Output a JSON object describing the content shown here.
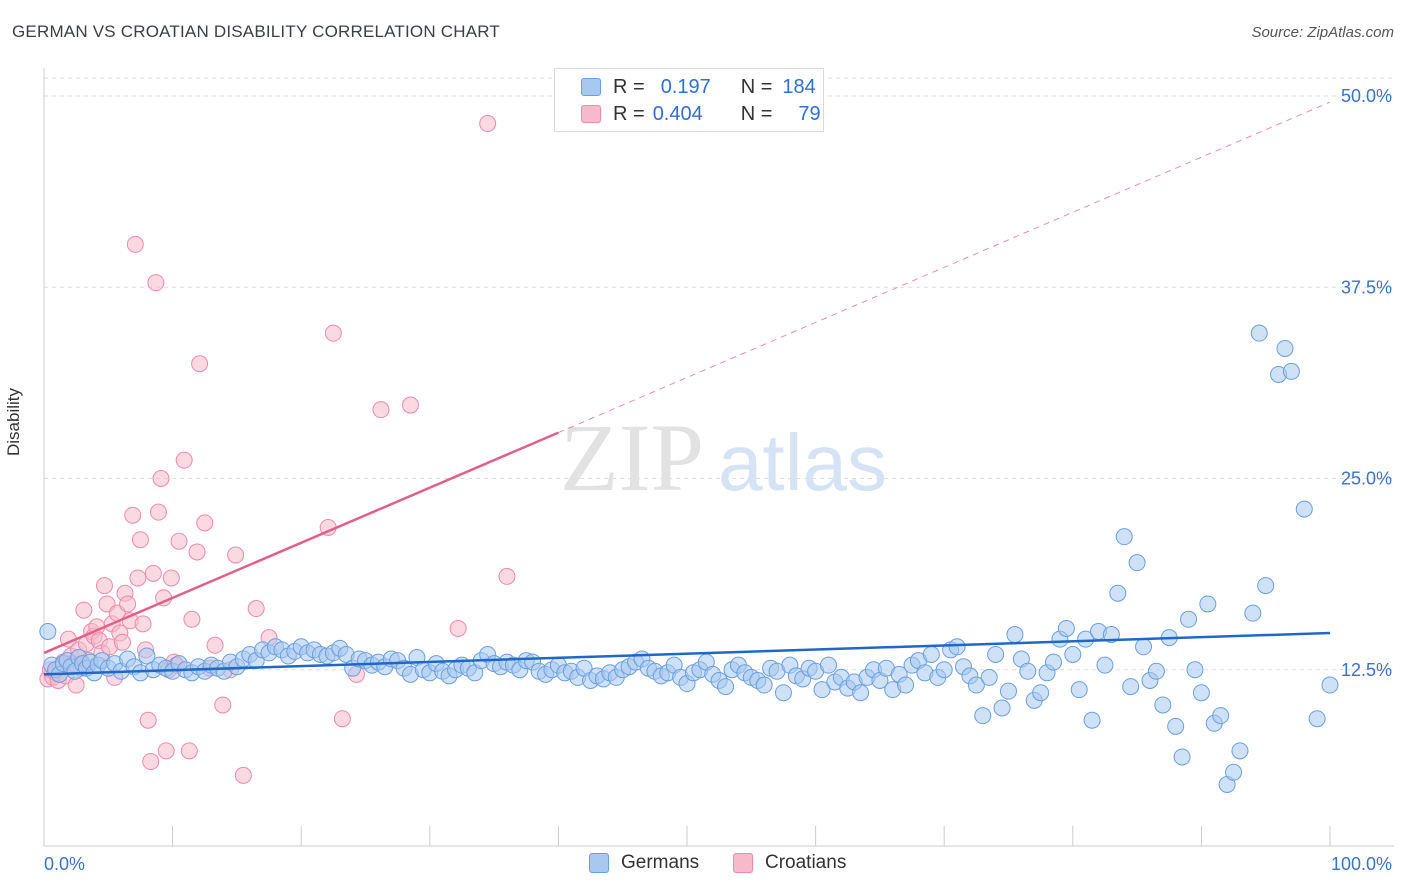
{
  "title": "GERMAN VS CROATIAN DISABILITY CORRELATION CHART",
  "source": "Source: ZipAtlas.com",
  "watermark": {
    "part1": "ZIP",
    "part2": "atlas"
  },
  "legend": {
    "rows": [
      {
        "r_label": "R =",
        "r_value": "0.197",
        "n_label": "N =",
        "n_value": "184"
      },
      {
        "r_label": "R =",
        "r_value": "0.404",
        "n_label": "N =",
        "n_value": "79"
      }
    ]
  },
  "bottom_legend": {
    "germans": "Germans",
    "croatians": "Croatians"
  },
  "colors": {
    "germans_fill": "#a8c8f0",
    "germans_stroke": "#6a9fe0",
    "germans_line": "#2068c8",
    "croatians_fill": "#f7b9cc",
    "croatians_stroke": "#ee8aaa",
    "croatians_line": "#e0608a",
    "tick_label": "#3a72c8",
    "grid": "#dddddd"
  },
  "chart_data": {
    "type": "scatter",
    "title": "GERMAN VS CROATIAN DISABILITY CORRELATION CHART",
    "xlabel": "",
    "ylabel": "Disability",
    "xlim": [
      0,
      100
    ],
    "ylim": [
      0,
      55
    ],
    "x_tick_labels": [
      "0.0%",
      "100.0%"
    ],
    "y_ticks": [
      12.5,
      25.0,
      37.5,
      50.0
    ],
    "y_tick_labels": [
      "12.5%",
      "25.0%",
      "37.5%",
      "50.0%"
    ],
    "grid": true,
    "legend_position": "top-center",
    "series": [
      {
        "name": "Germans",
        "r": 0.197,
        "n": 184,
        "trend": {
          "x": [
            0,
            100
          ],
          "y": [
            12.2,
            14.9
          ],
          "style": "solid"
        },
        "points": [
          [
            0.3,
            15
          ],
          [
            0.6,
            12.8
          ],
          [
            0.9,
            12.5
          ],
          [
            1.2,
            12.2
          ],
          [
            1.5,
            12.9
          ],
          [
            1.8,
            13.1
          ],
          [
            2.1,
            12.7
          ],
          [
            2.4,
            12.4
          ],
          [
            2.7,
            13.3
          ],
          [
            3.0,
            12.9
          ],
          [
            3.3,
            12.6
          ],
          [
            3.6,
            13.0
          ],
          [
            3.9,
            12.3
          ],
          [
            4.2,
            12.8
          ],
          [
            4.5,
            13.1
          ],
          [
            5,
            12.6
          ],
          [
            5.5,
            12.9
          ],
          [
            6,
            12.4
          ],
          [
            6.5,
            13.2
          ],
          [
            7,
            12.7
          ],
          [
            7.5,
            12.3
          ],
          [
            8,
            13.4
          ],
          [
            8.5,
            12.5
          ],
          [
            9,
            12.8
          ],
          [
            9.5,
            12.6
          ],
          [
            10,
            12.4
          ],
          [
            10.5,
            12.9
          ],
          [
            11,
            12.5
          ],
          [
            11.5,
            12.3
          ],
          [
            12,
            12.7
          ],
          [
            12.5,
            12.4
          ],
          [
            13,
            12.8
          ],
          [
            13.5,
            12.6
          ],
          [
            14,
            12.4
          ],
          [
            14.5,
            13.0
          ],
          [
            15,
            12.7
          ],
          [
            15.5,
            13.2
          ],
          [
            16,
            13.5
          ],
          [
            16.5,
            13.1
          ],
          [
            17,
            13.8
          ],
          [
            17.5,
            13.6
          ],
          [
            18,
            14.0
          ],
          [
            18.5,
            13.8
          ],
          [
            19,
            13.4
          ],
          [
            19.5,
            13.7
          ],
          [
            20,
            14.0
          ],
          [
            20.5,
            13.6
          ],
          [
            21,
            13.8
          ],
          [
            21.5,
            13.5
          ],
          [
            22,
            13.4
          ],
          [
            22.5,
            13.6
          ],
          [
            23,
            13.9
          ],
          [
            23.5,
            13.5
          ],
          [
            24,
            12.6
          ],
          [
            24.5,
            13.2
          ],
          [
            25,
            13.1
          ],
          [
            25.5,
            12.8
          ],
          [
            26,
            13.0
          ],
          [
            26.5,
            12.7
          ],
          [
            27,
            13.2
          ],
          [
            27.5,
            13.1
          ],
          [
            28,
            12.6
          ],
          [
            28.5,
            12.2
          ],
          [
            29,
            13.3
          ],
          [
            29.5,
            12.5
          ],
          [
            30,
            12.3
          ],
          [
            30.5,
            12.9
          ],
          [
            31,
            12.4
          ],
          [
            31.5,
            12.1
          ],
          [
            32,
            12.5
          ],
          [
            32.5,
            12.8
          ],
          [
            33,
            12.6
          ],
          [
            33.5,
            12.3
          ],
          [
            34,
            13.1
          ],
          [
            34.5,
            13.5
          ],
          [
            35,
            12.9
          ],
          [
            35.5,
            12.7
          ],
          [
            36,
            13.0
          ],
          [
            36.5,
            12.8
          ],
          [
            37,
            12.5
          ],
          [
            37.5,
            13.1
          ],
          [
            38,
            13.0
          ],
          [
            38.5,
            12.4
          ],
          [
            39,
            12.2
          ],
          [
            39.5,
            12.5
          ],
          [
            40,
            12.8
          ],
          [
            40.5,
            12.3
          ],
          [
            41,
            12.4
          ],
          [
            41.5,
            12.0
          ],
          [
            42,
            12.6
          ],
          [
            42.5,
            11.8
          ],
          [
            43,
            12.1
          ],
          [
            43.5,
            11.9
          ],
          [
            44,
            12.3
          ],
          [
            44.5,
            12.0
          ],
          [
            45,
            12.5
          ],
          [
            45.5,
            12.7
          ],
          [
            46,
            13.0
          ],
          [
            46.5,
            13.2
          ],
          [
            47,
            12.6
          ],
          [
            47.5,
            12.4
          ],
          [
            48,
            12.1
          ],
          [
            48.5,
            12.3
          ],
          [
            49,
            12.8
          ],
          [
            49.5,
            12.0
          ],
          [
            50,
            11.6
          ],
          [
            50.5,
            12.3
          ],
          [
            51,
            12.5
          ],
          [
            51.5,
            13.0
          ],
          [
            52,
            12.2
          ],
          [
            52.5,
            11.8
          ],
          [
            53,
            11.4
          ],
          [
            53.5,
            12.5
          ],
          [
            54,
            12.8
          ],
          [
            54.5,
            12.3
          ],
          [
            55,
            12.0
          ],
          [
            55.5,
            11.8
          ],
          [
            56,
            11.5
          ],
          [
            56.5,
            12.6
          ],
          [
            57,
            12.4
          ],
          [
            57.5,
            11.0
          ],
          [
            58,
            12.8
          ],
          [
            58.5,
            12.1
          ],
          [
            59,
            11.9
          ],
          [
            59.5,
            12.6
          ],
          [
            60,
            12.4
          ],
          [
            60.5,
            11.2
          ],
          [
            61,
            12.8
          ],
          [
            61.5,
            11.7
          ],
          [
            62,
            12.0
          ],
          [
            62.5,
            11.3
          ],
          [
            63,
            11.7
          ],
          [
            63.5,
            11.0
          ],
          [
            64,
            12.0
          ],
          [
            64.5,
            12.5
          ],
          [
            65,
            11.8
          ],
          [
            65.5,
            12.6
          ],
          [
            66,
            11.2
          ],
          [
            66.5,
            12.2
          ],
          [
            67,
            11.5
          ],
          [
            67.5,
            12.8
          ],
          [
            68,
            13.1
          ],
          [
            68.5,
            12.3
          ],
          [
            69,
            13.5
          ],
          [
            69.5,
            12.0
          ],
          [
            70,
            12.5
          ],
          [
            70.5,
            13.8
          ],
          [
            71,
            14.0
          ],
          [
            71.5,
            12.7
          ],
          [
            72,
            12.1
          ],
          [
            72.5,
            11.5
          ],
          [
            73,
            9.5
          ],
          [
            73.5,
            12.0
          ],
          [
            74,
            13.5
          ],
          [
            74.5,
            10.0
          ],
          [
            75,
            11.1
          ],
          [
            75.5,
            14.8
          ],
          [
            76,
            13.2
          ],
          [
            76.5,
            12.4
          ],
          [
            77,
            10.5
          ],
          [
            77.5,
            11.0
          ],
          [
            78,
            12.3
          ],
          [
            78.5,
            13.0
          ],
          [
            79,
            14.5
          ],
          [
            79.5,
            15.2
          ],
          [
            80,
            13.5
          ],
          [
            80.5,
            11.2
          ],
          [
            81,
            14.5
          ],
          [
            81.5,
            9.2
          ],
          [
            82,
            15.0
          ],
          [
            82.5,
            12.8
          ],
          [
            83,
            14.8
          ],
          [
            83.5,
            17.5
          ],
          [
            84,
            21.2
          ],
          [
            84.5,
            11.4
          ],
          [
            85,
            19.5
          ],
          [
            85.5,
            14.0
          ],
          [
            86,
            11.8
          ],
          [
            86.5,
            12.4
          ],
          [
            87,
            10.2
          ],
          [
            87.5,
            14.6
          ],
          [
            88,
            8.8
          ],
          [
            88.5,
            6.8
          ],
          [
            89,
            15.8
          ],
          [
            89.5,
            12.5
          ],
          [
            90,
            11.0
          ],
          [
            90.5,
            16.8
          ],
          [
            91,
            9.0
          ],
          [
            91.5,
            9.5
          ],
          [
            92,
            5.0
          ],
          [
            92.5,
            5.8
          ],
          [
            93,
            7.2
          ],
          [
            94,
            16.2
          ],
          [
            94.5,
            34.5
          ],
          [
            95,
            18.0
          ],
          [
            96,
            31.8
          ],
          [
            96.5,
            33.5
          ],
          [
            97,
            32.0
          ],
          [
            98,
            23.0
          ],
          [
            99,
            9.3
          ],
          [
            100,
            11.5
          ]
        ]
      },
      {
        "name": "Croatians",
        "r": 0.404,
        "n": 79,
        "trend": {
          "x": [
            0,
            40
          ],
          "y": [
            13.6,
            28.0
          ],
          "style": "solid",
          "extension": {
            "x": [
              40,
              100
            ],
            "y": [
              28.0,
              49.6
            ],
            "style": "dashed"
          }
        },
        "points": [
          [
            0.3,
            11.9
          ],
          [
            0.5,
            12.5
          ],
          [
            0.7,
            12.0
          ],
          [
            0.9,
            12.3
          ],
          [
            1.1,
            11.8
          ],
          [
            1.3,
            12.7
          ],
          [
            1.5,
            13.0
          ],
          [
            1.7,
            12.1
          ],
          [
            1.9,
            14.5
          ],
          [
            2.1,
            13.4
          ],
          [
            2.3,
            12.9
          ],
          [
            2.5,
            11.5
          ],
          [
            2.7,
            13.8
          ],
          [
            2.9,
            12.6
          ],
          [
            3.1,
            16.4
          ],
          [
            3.3,
            14.2
          ],
          [
            3.5,
            13.1
          ],
          [
            3.7,
            15.0
          ],
          [
            3.9,
            14.7
          ],
          [
            4.1,
            15.3
          ],
          [
            4.3,
            14.4
          ],
          [
            4.5,
            13.6
          ],
          [
            4.7,
            18.0
          ],
          [
            4.9,
            16.8
          ],
          [
            5.1,
            14.0
          ],
          [
            5.3,
            15.5
          ],
          [
            5.5,
            12.0
          ],
          [
            5.7,
            16.2
          ],
          [
            5.9,
            14.9
          ],
          [
            6.1,
            14.3
          ],
          [
            6.3,
            17.5
          ],
          [
            6.5,
            16.8
          ],
          [
            6.7,
            15.7
          ],
          [
            6.9,
            22.6
          ],
          [
            7.1,
            40.3
          ],
          [
            7.3,
            18.5
          ],
          [
            7.5,
            21.0
          ],
          [
            7.7,
            15.5
          ],
          [
            7.9,
            13.8
          ],
          [
            8.1,
            9.2
          ],
          [
            8.3,
            6.5
          ],
          [
            8.5,
            18.8
          ],
          [
            8.7,
            37.8
          ],
          [
            8.9,
            22.8
          ],
          [
            9.1,
            25.0
          ],
          [
            9.3,
            17.2
          ],
          [
            9.5,
            7.2
          ],
          [
            9.7,
            12.5
          ],
          [
            9.9,
            18.5
          ],
          [
            10.1,
            13.0
          ],
          [
            10.3,
            12.8
          ],
          [
            10.5,
            20.9
          ],
          [
            10.9,
            26.2
          ],
          [
            11.3,
            7.2
          ],
          [
            11.5,
            15.8
          ],
          [
            11.9,
            20.2
          ],
          [
            12.1,
            32.5
          ],
          [
            12.5,
            22.1
          ],
          [
            12.9,
            12.6
          ],
          [
            13.3,
            14.1
          ],
          [
            13.9,
            10.2
          ],
          [
            14.5,
            12.5
          ],
          [
            14.9,
            20.0
          ],
          [
            15.5,
            5.6
          ],
          [
            16.5,
            16.5
          ],
          [
            17.5,
            14.6
          ],
          [
            22.1,
            21.8
          ],
          [
            22.5,
            34.5
          ],
          [
            23.2,
            9.3
          ],
          [
            24.3,
            12.2
          ],
          [
            26.2,
            29.5
          ],
          [
            28.5,
            29.8
          ],
          [
            32.2,
            15.2
          ],
          [
            34.5,
            48.2
          ],
          [
            36,
            18.6
          ]
        ]
      }
    ]
  }
}
